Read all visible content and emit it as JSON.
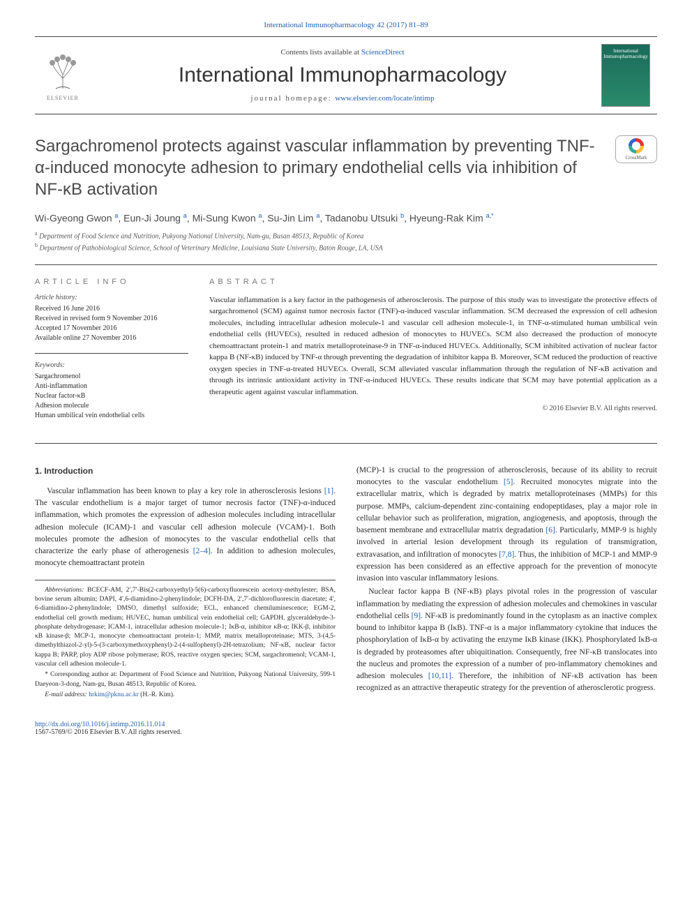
{
  "journal": {
    "link_line": "International Immunopharmacology 42 (2017) 81–89",
    "contents_prefix": "Contents lists available at ",
    "contents_link": "ScienceDirect",
    "title": "International Immunopharmacology",
    "homepage_label": "journal homepage: ",
    "homepage_url": "www.elsevier.com/locate/intimp",
    "publisher_label": "ELSEVIER",
    "cover_text": "International Immunopharmacology"
  },
  "crossmark": {
    "label": "CrossMark"
  },
  "article": {
    "title": "Sargachromenol protects against vascular inflammation by preventing TNF-α-induced monocyte adhesion to primary endothelial cells via inhibition of NF-κB activation",
    "authors_html": "Wi-Gyeong Gwon <sup>a</sup>, Eun-Ji Joung <sup>a</sup>, Mi-Sung Kwon <sup>a</sup>, Su-Jin Lim <sup>a</sup>, Tadanobu Utsuki <sup>b</sup>, Hyeung-Rak Kim <sup class='corr'>a,*</sup>",
    "affiliations": [
      {
        "sup": "a",
        "text": "Department of Food Science and Nutrition, Pukyong National University, Nam-gu, Busan 48513, Republic of Korea"
      },
      {
        "sup": "b",
        "text": "Department of Pathobiological Science, School of Veterinary Medicine, Louisiana State University, Baton Rouge, LA, USA"
      }
    ]
  },
  "info": {
    "heading": "ARTICLE INFO",
    "history_label": "Article history:",
    "history": [
      "Received 16 June 2016",
      "Received in revised form 9 November 2016",
      "Accepted 17 November 2016",
      "Available online 27 November 2016"
    ],
    "keywords_label": "Keywords:",
    "keywords": [
      "Sargachromenol",
      "Anti-inflammation",
      "Nuclear factor-κB",
      "Adhesion molecule",
      "Human umbilical vein endothelial cells"
    ]
  },
  "abstract": {
    "heading": "ABSTRACT",
    "text": "Vascular inflammation is a key factor in the pathogenesis of atherosclerosis. The purpose of this study was to investigate the protective effects of sargachromenol (SCM) against tumor necrosis factor (TNF)-α-induced vascular inflammation. SCM decreased the expression of cell adhesion molecules, including intracellular adhesion molecule-1 and vascular cell adhesion molecule-1, in TNF-α-stimulated human umbilical vein endothelial cells (HUVECs), resulted in reduced adhesion of monocytes to HUVECs. SCM also decreased the production of monocyte chemoattractant protein-1 and matrix metalloproteinase-9 in TNF-α-induced HUVECs. Additionally, SCM inhibited activation of nuclear factor kappa B (NF-κB) induced by TNF-α through preventing the degradation of inhibitor kappa B. Moreover, SCM reduced the production of reactive oxygen species in TNF-α-treated HUVECs. Overall, SCM alleviated vascular inflammation through the regulation of NF-κB activation and through its intrinsic antioxidant activity in TNF-α-induced HUVECs. These results indicate that SCM may have potential application as a therapeutic agent against vascular inflammation.",
    "copyright": "© 2016 Elsevier B.V. All rights reserved."
  },
  "body": {
    "section_heading": "1. Introduction",
    "p1": "Vascular inflammation has been known to play a key role in atherosclerosis lesions [1]. The vascular endothelium is a major target of tumor necrosis factor (TNF)-α-induced inflammation, which promotes the expression of adhesion molecules including intracellular adhesion molecule (ICAM)-1 and vascular cell adhesion molecule (VCAM)-1. Both molecules promote the adhesion of monocytes to the vascular endothelial cells that characterize the early phase of atherogenesis [2–4]. In addition to adhesion molecules, monocyte chemoattractant protein",
    "p2": "(MCP)-1 is crucial to the progression of atherosclerosis, because of its ability to recruit monocytes to the vascular endothelium [5]. Recruited monocytes migrate into the extracellular matrix, which is degraded by matrix metalloproteinases (MMPs) for this purpose. MMPs, calcium-dependent zinc-containing endopeptidases, play a major role in cellular behavior such as proliferation, migration, angiogenesis, and apoptosis, through the basement membrane and extracellular matrix degradation [6]. Particularly, MMP-9 is highly involved in arterial lesion development through its regulation of transmigration, extravasation, and infiltration of monocytes [7,8]. Thus, the inhibition of MCP-1 and MMP-9 expression has been considered as an effective approach for the prevention of monocyte invasion into vascular inflammatory lesions.",
    "p3": "Nuclear factor kappa B (NF-κB) plays pivotal roles in the progression of vascular inflammation by mediating the expression of adhesion molecules and chemokines in vascular endothelial cells [9]. NF-κB is predominantly found in the cytoplasm as an inactive complex bound to inhibitor kappa B (IκB). TNF-α is a major inflammatory cytokine that induces the phosphorylation of IκB-α by activating the enzyme IκB kinase (IKK). Phosphorylated IκB-α is degraded by proteasomes after ubiquitination. Consequently, free NF-κB translocates into the nucleus and promotes the expression of a number of pro-inflammatory chemokines and adhesion molecules [10,11]. Therefore, the inhibition of NF-κB activation has been recognized as an attractive therapeutic strategy for the prevention of atherosclerotic progress."
  },
  "footnotes": {
    "abbrev_label": "Abbreviations:",
    "abbrev_text": "BCECF-AM, 2′,7′-Bis(2-carboxyethyl)-5(6)-carboxyfluorescein acetoxy-methylester; BSA, bovine serum albumin; DAPI, 4′,6-diamidino-2-phenylindole; DCFH-DA, 2′,7′-dichlorofluorescin diacetate; 4′, 6-diamidino-2-phenylindole; DMSO, dimethyl sulfoxide; ECL, enhanced chemiluminescence; EGM-2, endothelial cell growth medium; HUVEC, human umbilical vein endothelial cell; GAPDH, glyceraldehyde-3-phosphate dehydrogenase; ICAM-1, intracellular adhesion molecule-1; IκB-α, inhibitor κB-α; IKK-β, inhibitor κB kinase-β; MCP-1, monocyte chemoattractant protein-1; MMP, matrix metalloproteinase; MTS, 3-(4,5-dimethylthiazol-2-yl)-5-(3-carboxymethoxyphenyl)-2-(4-sulfophenyl)-2H-tetrazolium; NF-κB, nuclear factor kappa B; PARP, ploy ADP ribose polymerase; ROS, reactive oxygen species; SCM, sargachromenol; VCAM-1, vascular cell adhesion molecule-1.",
    "corr_label": "* Corresponding author at:",
    "corr_text": "Department of Food Science and Nutrition, Pukyong National University, 599-1 Daeyeon-3-dong, Nam-gu, Busan 48513, Republic of Korea.",
    "email_label": "E-mail address:",
    "email": "hrkim@pknu.ac.kr",
    "email_person": "(H.-R. Kim)."
  },
  "footer": {
    "doi": "http://dx.doi.org/10.1016/j.intimp.2016.11.014",
    "issn_line": "1567-5769/© 2016 Elsevier B.V. All rights reserved."
  },
  "colors": {
    "link": "#2060b0",
    "text": "#2a2a2a",
    "muted": "#777",
    "rule": "#444"
  }
}
